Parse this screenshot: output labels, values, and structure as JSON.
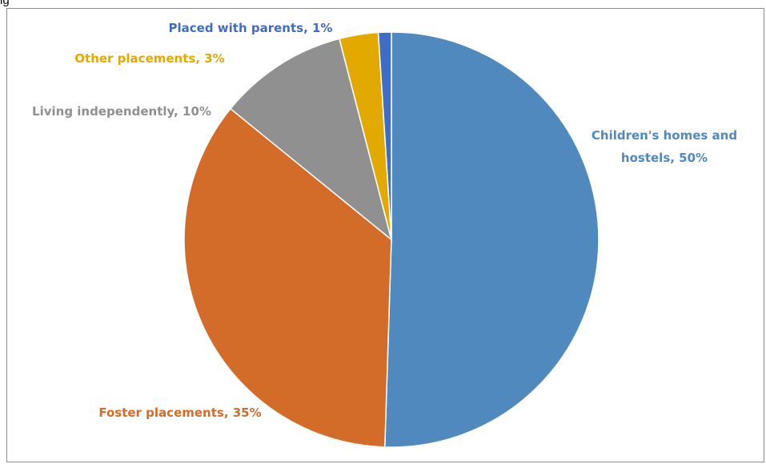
{
  "caption": "ig",
  "chart_data": {
    "type": "pie",
    "title": "",
    "slices": [
      {
        "label": "Children's homes and hostels",
        "value": 50,
        "color": "#4f89bd",
        "label_lines": [
          "Children's homes and",
          "hostels, 50%"
        ]
      },
      {
        "label": "Foster placements",
        "value": 35,
        "color": "#d46c29",
        "label_lines": [
          "Foster placements, 35%"
        ]
      },
      {
        "label": "Living independently",
        "value": 10,
        "color": "#909090",
        "label_lines": [
          "Living independently, 10%"
        ]
      },
      {
        "label": "Other placements",
        "value": 3,
        "color": "#e2aa00",
        "label_lines": [
          "Other placements, 3%"
        ]
      },
      {
        "label": "Placed with parents",
        "value": 1,
        "color": "#3f6cc4",
        "label_lines": [
          "Placed with parents, 1%"
        ]
      }
    ],
    "legend": "none",
    "data_labels": "outside"
  }
}
